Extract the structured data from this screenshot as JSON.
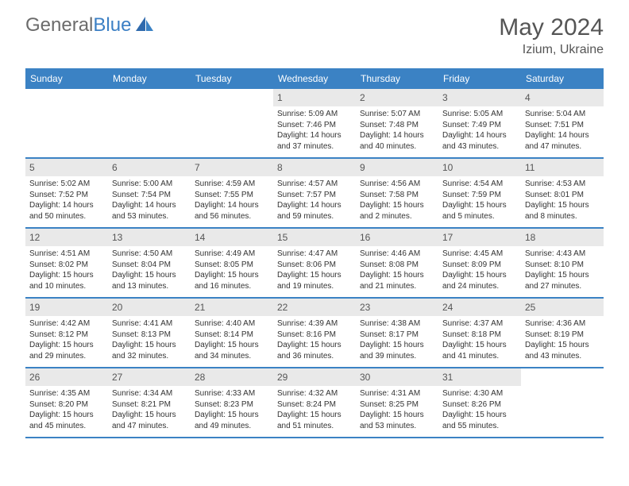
{
  "logo": {
    "text1": "General",
    "text2": "Blue"
  },
  "title": "May 2024",
  "subtitle": "Izium, Ukraine",
  "colors": {
    "header_bar": "#3b82c4",
    "daynum_bg": "#e9e9e9",
    "logo_gray": "#6b6b6b",
    "logo_blue": "#3b7fc4",
    "border": "#3b82c4",
    "text": "#333333",
    "title_text": "#555555",
    "background": "#ffffff"
  },
  "weekdays": [
    "Sunday",
    "Monday",
    "Tuesday",
    "Wednesday",
    "Thursday",
    "Friday",
    "Saturday"
  ],
  "weeks": [
    [
      {
        "n": "",
        "lines": []
      },
      {
        "n": "",
        "lines": []
      },
      {
        "n": "",
        "lines": []
      },
      {
        "n": "1",
        "lines": [
          "Sunrise: 5:09 AM",
          "Sunset: 7:46 PM",
          "Daylight: 14 hours and 37 minutes."
        ]
      },
      {
        "n": "2",
        "lines": [
          "Sunrise: 5:07 AM",
          "Sunset: 7:48 PM",
          "Daylight: 14 hours and 40 minutes."
        ]
      },
      {
        "n": "3",
        "lines": [
          "Sunrise: 5:05 AM",
          "Sunset: 7:49 PM",
          "Daylight: 14 hours and 43 minutes."
        ]
      },
      {
        "n": "4",
        "lines": [
          "Sunrise: 5:04 AM",
          "Sunset: 7:51 PM",
          "Daylight: 14 hours and 47 minutes."
        ]
      }
    ],
    [
      {
        "n": "5",
        "lines": [
          "Sunrise: 5:02 AM",
          "Sunset: 7:52 PM",
          "Daylight: 14 hours and 50 minutes."
        ]
      },
      {
        "n": "6",
        "lines": [
          "Sunrise: 5:00 AM",
          "Sunset: 7:54 PM",
          "Daylight: 14 hours and 53 minutes."
        ]
      },
      {
        "n": "7",
        "lines": [
          "Sunrise: 4:59 AM",
          "Sunset: 7:55 PM",
          "Daylight: 14 hours and 56 minutes."
        ]
      },
      {
        "n": "8",
        "lines": [
          "Sunrise: 4:57 AM",
          "Sunset: 7:57 PM",
          "Daylight: 14 hours and 59 minutes."
        ]
      },
      {
        "n": "9",
        "lines": [
          "Sunrise: 4:56 AM",
          "Sunset: 7:58 PM",
          "Daylight: 15 hours and 2 minutes."
        ]
      },
      {
        "n": "10",
        "lines": [
          "Sunrise: 4:54 AM",
          "Sunset: 7:59 PM",
          "Daylight: 15 hours and 5 minutes."
        ]
      },
      {
        "n": "11",
        "lines": [
          "Sunrise: 4:53 AM",
          "Sunset: 8:01 PM",
          "Daylight: 15 hours and 8 minutes."
        ]
      }
    ],
    [
      {
        "n": "12",
        "lines": [
          "Sunrise: 4:51 AM",
          "Sunset: 8:02 PM",
          "Daylight: 15 hours and 10 minutes."
        ]
      },
      {
        "n": "13",
        "lines": [
          "Sunrise: 4:50 AM",
          "Sunset: 8:04 PM",
          "Daylight: 15 hours and 13 minutes."
        ]
      },
      {
        "n": "14",
        "lines": [
          "Sunrise: 4:49 AM",
          "Sunset: 8:05 PM",
          "Daylight: 15 hours and 16 minutes."
        ]
      },
      {
        "n": "15",
        "lines": [
          "Sunrise: 4:47 AM",
          "Sunset: 8:06 PM",
          "Daylight: 15 hours and 19 minutes."
        ]
      },
      {
        "n": "16",
        "lines": [
          "Sunrise: 4:46 AM",
          "Sunset: 8:08 PM",
          "Daylight: 15 hours and 21 minutes."
        ]
      },
      {
        "n": "17",
        "lines": [
          "Sunrise: 4:45 AM",
          "Sunset: 8:09 PM",
          "Daylight: 15 hours and 24 minutes."
        ]
      },
      {
        "n": "18",
        "lines": [
          "Sunrise: 4:43 AM",
          "Sunset: 8:10 PM",
          "Daylight: 15 hours and 27 minutes."
        ]
      }
    ],
    [
      {
        "n": "19",
        "lines": [
          "Sunrise: 4:42 AM",
          "Sunset: 8:12 PM",
          "Daylight: 15 hours and 29 minutes."
        ]
      },
      {
        "n": "20",
        "lines": [
          "Sunrise: 4:41 AM",
          "Sunset: 8:13 PM",
          "Daylight: 15 hours and 32 minutes."
        ]
      },
      {
        "n": "21",
        "lines": [
          "Sunrise: 4:40 AM",
          "Sunset: 8:14 PM",
          "Daylight: 15 hours and 34 minutes."
        ]
      },
      {
        "n": "22",
        "lines": [
          "Sunrise: 4:39 AM",
          "Sunset: 8:16 PM",
          "Daylight: 15 hours and 36 minutes."
        ]
      },
      {
        "n": "23",
        "lines": [
          "Sunrise: 4:38 AM",
          "Sunset: 8:17 PM",
          "Daylight: 15 hours and 39 minutes."
        ]
      },
      {
        "n": "24",
        "lines": [
          "Sunrise: 4:37 AM",
          "Sunset: 8:18 PM",
          "Daylight: 15 hours and 41 minutes."
        ]
      },
      {
        "n": "25",
        "lines": [
          "Sunrise: 4:36 AM",
          "Sunset: 8:19 PM",
          "Daylight: 15 hours and 43 minutes."
        ]
      }
    ],
    [
      {
        "n": "26",
        "lines": [
          "Sunrise: 4:35 AM",
          "Sunset: 8:20 PM",
          "Daylight: 15 hours and 45 minutes."
        ]
      },
      {
        "n": "27",
        "lines": [
          "Sunrise: 4:34 AM",
          "Sunset: 8:21 PM",
          "Daylight: 15 hours and 47 minutes."
        ]
      },
      {
        "n": "28",
        "lines": [
          "Sunrise: 4:33 AM",
          "Sunset: 8:23 PM",
          "Daylight: 15 hours and 49 minutes."
        ]
      },
      {
        "n": "29",
        "lines": [
          "Sunrise: 4:32 AM",
          "Sunset: 8:24 PM",
          "Daylight: 15 hours and 51 minutes."
        ]
      },
      {
        "n": "30",
        "lines": [
          "Sunrise: 4:31 AM",
          "Sunset: 8:25 PM",
          "Daylight: 15 hours and 53 minutes."
        ]
      },
      {
        "n": "31",
        "lines": [
          "Sunrise: 4:30 AM",
          "Sunset: 8:26 PM",
          "Daylight: 15 hours and 55 minutes."
        ]
      },
      {
        "n": "",
        "lines": []
      }
    ]
  ]
}
